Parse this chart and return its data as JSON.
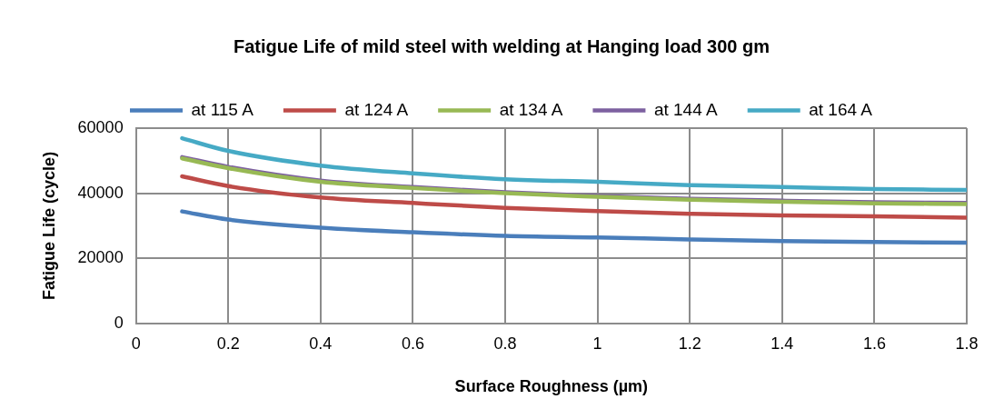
{
  "chart_data": {
    "type": "line",
    "title": "Fatigue Life of mild steel with welding at Hanging load 300 gm",
    "xlabel": "Surface Roughness (µm)",
    "ylabel": "Fatigue Life (cycle)",
    "x": [
      0.1,
      0.2,
      0.4,
      0.6,
      0.8,
      1.0,
      1.2,
      1.4,
      1.6,
      1.8
    ],
    "series": [
      {
        "name": "at 115 A",
        "color": "#4a7ebb",
        "values": [
          34400,
          31900,
          29400,
          28000,
          26900,
          26400,
          25800,
          25300,
          25000,
          24800
        ]
      },
      {
        "name": "at 124 A",
        "color": "#be4b48",
        "values": [
          45200,
          42200,
          38700,
          37000,
          35500,
          34500,
          33700,
          33200,
          32900,
          32500
        ]
      },
      {
        "name": "at 134 A",
        "color": "#98b954",
        "values": [
          50700,
          47700,
          43500,
          41600,
          40000,
          38900,
          38000,
          37400,
          36900,
          36700
        ]
      },
      {
        "name": "at 144 A",
        "color": "#7d60a0",
        "values": [
          51100,
          48100,
          43900,
          41900,
          40300,
          39200,
          38300,
          37700,
          37200,
          37000
        ]
      },
      {
        "name": "at 164 A",
        "color": "#46aac5",
        "values": [
          56900,
          53000,
          48500,
          46100,
          44300,
          43500,
          42500,
          41900,
          41300,
          41000
        ]
      }
    ],
    "xlim": [
      0,
      1.8
    ],
    "xticks": [
      0,
      0.2,
      0.4,
      0.6,
      0.8,
      1,
      1.2,
      1.4,
      1.6,
      1.8
    ],
    "ylim": [
      0,
      60000
    ],
    "yticks": [
      0,
      20000,
      40000,
      60000
    ],
    "grid": true,
    "legend": "top",
    "marker": "none",
    "line_style": "solid"
  }
}
